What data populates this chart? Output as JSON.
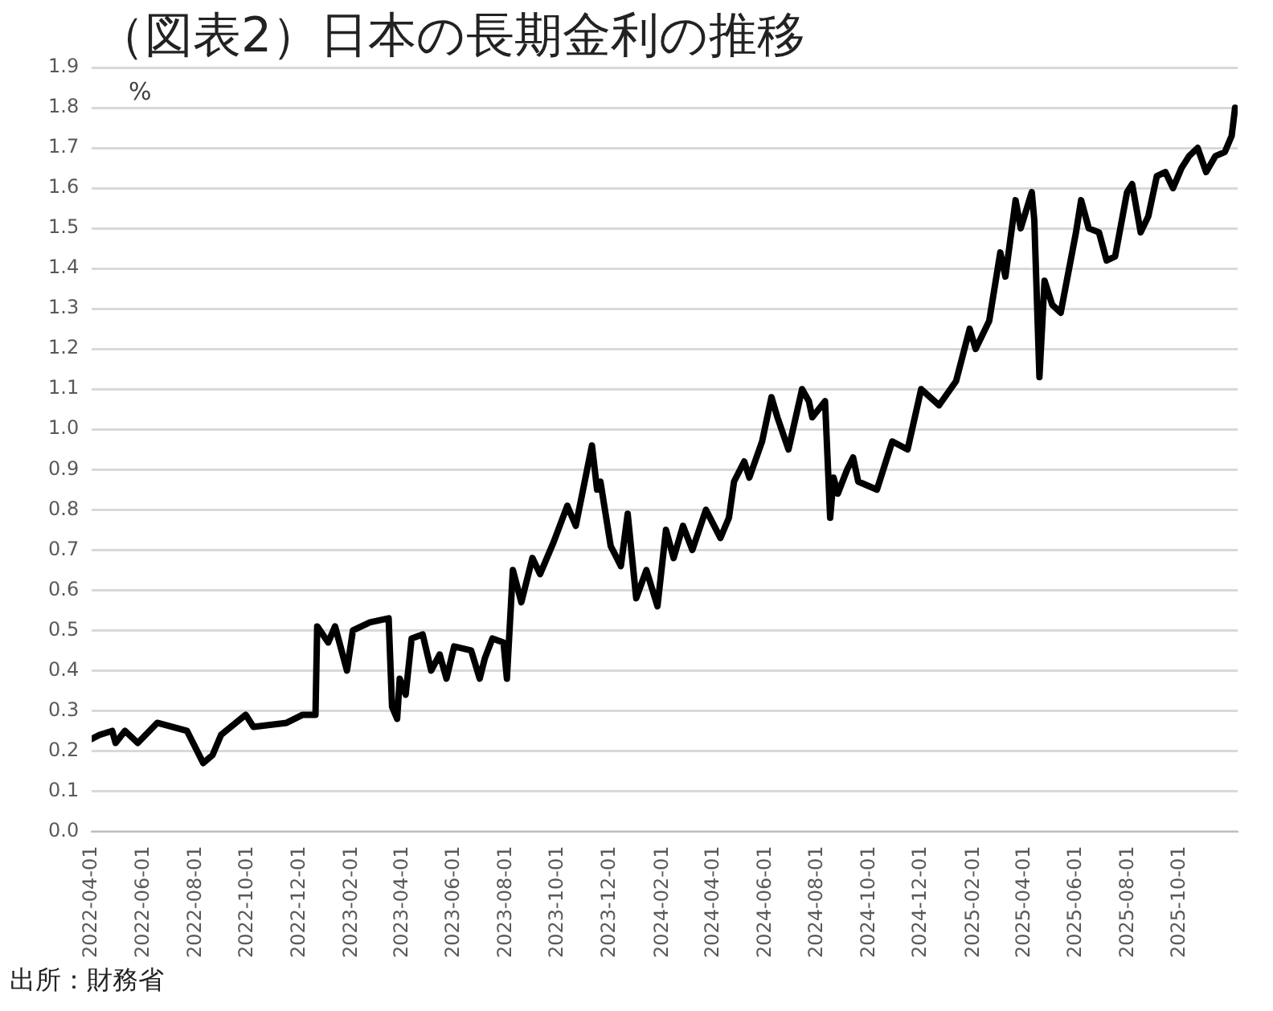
{
  "chart_data": {
    "type": "line",
    "title": "（図表2）日本の長期金利の推移",
    "ylabel": "%",
    "annotations": [
      "出所：財務省"
    ],
    "x": [
      "2022-04-01",
      "2022-04-10",
      "2022-04-25",
      "2022-04-29",
      "2022-05-10",
      "2022-05-25",
      "2022-06-17",
      "2022-07-22",
      "2022-08-10",
      "2022-08-21",
      "2022-08-31",
      "2022-09-29",
      "2022-10-08",
      "2022-11-16",
      "2022-12-05",
      "2022-12-20",
      "2022-12-22",
      "2023-01-04",
      "2023-01-12",
      "2023-01-26",
      "2023-02-02",
      "2023-02-22",
      "2023-03-16",
      "2023-03-20",
      "2023-03-26",
      "2023-03-29",
      "2023-04-05",
      "2023-04-12",
      "2023-04-25",
      "2023-05-05",
      "2023-05-15",
      "2023-05-23",
      "2023-06-01",
      "2023-06-21",
      "2023-07-01",
      "2023-07-07",
      "2023-07-16",
      "2023-07-29",
      "2023-08-02",
      "2023-08-09",
      "2023-08-19",
      "2023-09-01",
      "2023-09-10",
      "2023-09-26",
      "2023-10-12",
      "2023-10-22",
      "2023-11-10",
      "2023-11-16",
      "2023-11-20",
      "2023-12-02",
      "2023-12-14",
      "2023-12-22",
      "2024-01-01",
      "2024-01-13",
      "2024-01-26",
      "2024-02-05",
      "2024-02-14",
      "2024-02-25",
      "2024-03-07",
      "2024-03-23",
      "2024-04-09",
      "2024-04-19",
      "2024-04-25",
      "2024-05-07",
      "2024-05-13",
      "2024-05-28",
      "2024-06-08",
      "2024-06-15",
      "2024-06-28",
      "2024-07-14",
      "2024-07-22",
      "2024-07-26",
      "2024-08-10",
      "2024-08-16",
      "2024-08-20",
      "2024-08-25",
      "2024-09-05",
      "2024-09-12",
      "2024-09-18",
      "2024-10-10",
      "2024-10-28",
      "2024-11-15",
      "2024-12-01",
      "2024-12-22",
      "2025-01-11",
      "2025-01-27",
      "2025-02-03",
      "2025-02-19",
      "2025-03-04",
      "2025-03-10",
      "2025-03-22",
      "2025-03-28",
      "2025-04-10",
      "2025-04-13",
      "2025-04-19",
      "2025-04-25",
      "2025-05-04",
      "2025-05-14",
      "2025-06-01",
      "2025-06-07",
      "2025-06-16",
      "2025-06-28",
      "2025-07-07",
      "2025-07-17",
      "2025-07-31",
      "2025-08-06",
      "2025-08-16",
      "2025-08-25",
      "2025-09-04",
      "2025-09-14",
      "2025-09-23",
      "2025-10-03",
      "2025-10-12",
      "2025-10-22",
      "2025-11-01",
      "2025-11-12",
      "2025-11-23",
      "2025-12-01",
      "2025-12-05"
    ],
    "series": [
      {
        "color": "#000000",
        "values": [
          0.23,
          0.24,
          0.25,
          0.22,
          0.25,
          0.22,
          0.27,
          0.25,
          0.17,
          0.19,
          0.24,
          0.29,
          0.26,
          0.27,
          0.29,
          0.29,
          0.51,
          0.47,
          0.51,
          0.4,
          0.5,
          0.52,
          0.53,
          0.31,
          0.28,
          0.38,
          0.34,
          0.48,
          0.49,
          0.4,
          0.44,
          0.38,
          0.46,
          0.45,
          0.38,
          0.43,
          0.48,
          0.47,
          0.38,
          0.65,
          0.57,
          0.68,
          0.64,
          0.72,
          0.81,
          0.76,
          0.96,
          0.85,
          0.87,
          0.71,
          0.66,
          0.79,
          0.58,
          0.65,
          0.56,
          0.75,
          0.68,
          0.76,
          0.7,
          0.8,
          0.73,
          0.78,
          0.87,
          0.92,
          0.88,
          0.97,
          1.08,
          1.03,
          0.95,
          1.1,
          1.07,
          1.03,
          1.07,
          0.78,
          0.88,
          0.84,
          0.9,
          0.93,
          0.87,
          0.85,
          0.97,
          0.95,
          1.1,
          1.06,
          1.12,
          1.25,
          1.2,
          1.27,
          1.44,
          1.38,
          1.57,
          1.5,
          1.59,
          1.52,
          1.13,
          1.37,
          1.31,
          1.29,
          1.49,
          1.57,
          1.5,
          1.49,
          1.42,
          1.43,
          1.59,
          1.61,
          1.49,
          1.53,
          1.63,
          1.64,
          1.6,
          1.65,
          1.68,
          1.7,
          1.64,
          1.68,
          1.69,
          1.73,
          1.8
        ]
      }
    ],
    "xlim": [
      "2022-04-01",
      "2025-12-08"
    ],
    "xticks": [
      "2022-04-01",
      "2022-06-01",
      "2022-08-01",
      "2022-10-01",
      "2022-12-01",
      "2023-02-01",
      "2023-04-01",
      "2023-06-01",
      "2023-08-01",
      "2023-10-01",
      "2023-12-01",
      "2024-02-01",
      "2024-04-01",
      "2024-06-01",
      "2024-08-01",
      "2024-10-01",
      "2024-12-01",
      "2025-02-01",
      "2025-04-01",
      "2025-06-01",
      "2025-08-01",
      "2025-10-01"
    ],
    "ylim": [
      0,
      1.9
    ],
    "yticks": [
      {
        "value": 0,
        "label": "0.0"
      },
      {
        "value": 0.1,
        "label": "0.1"
      },
      {
        "value": 0.2,
        "label": "0.2"
      },
      {
        "value": 0.3,
        "label": "0.3"
      },
      {
        "value": 0.4,
        "label": "0.4"
      },
      {
        "value": 0.5,
        "label": "0.5"
      },
      {
        "value": 0.6,
        "label": "0.6"
      },
      {
        "value": 0.7,
        "label": "0.7"
      },
      {
        "value": 0.8,
        "label": "0.8"
      },
      {
        "value": 0.9,
        "label": "0.9"
      },
      {
        "value": 1,
        "label": "1.0"
      },
      {
        "value": 1.1,
        "label": "1.1"
      },
      {
        "value": 1.2,
        "label": "1.2"
      },
      {
        "value": 1.3,
        "label": "1.3"
      },
      {
        "value": 1.4,
        "label": "1.4"
      },
      {
        "value": 1.5,
        "label": "1.5"
      },
      {
        "value": 1.6,
        "label": "1.6"
      },
      {
        "value": 1.7,
        "label": "1.7"
      },
      {
        "value": 1.8,
        "label": "1.8"
      },
      {
        "value": 1.9,
        "label": "1.9"
      }
    ],
    "grid": "y",
    "legend": false,
    "marker": "none",
    "line_style": "solid"
  }
}
